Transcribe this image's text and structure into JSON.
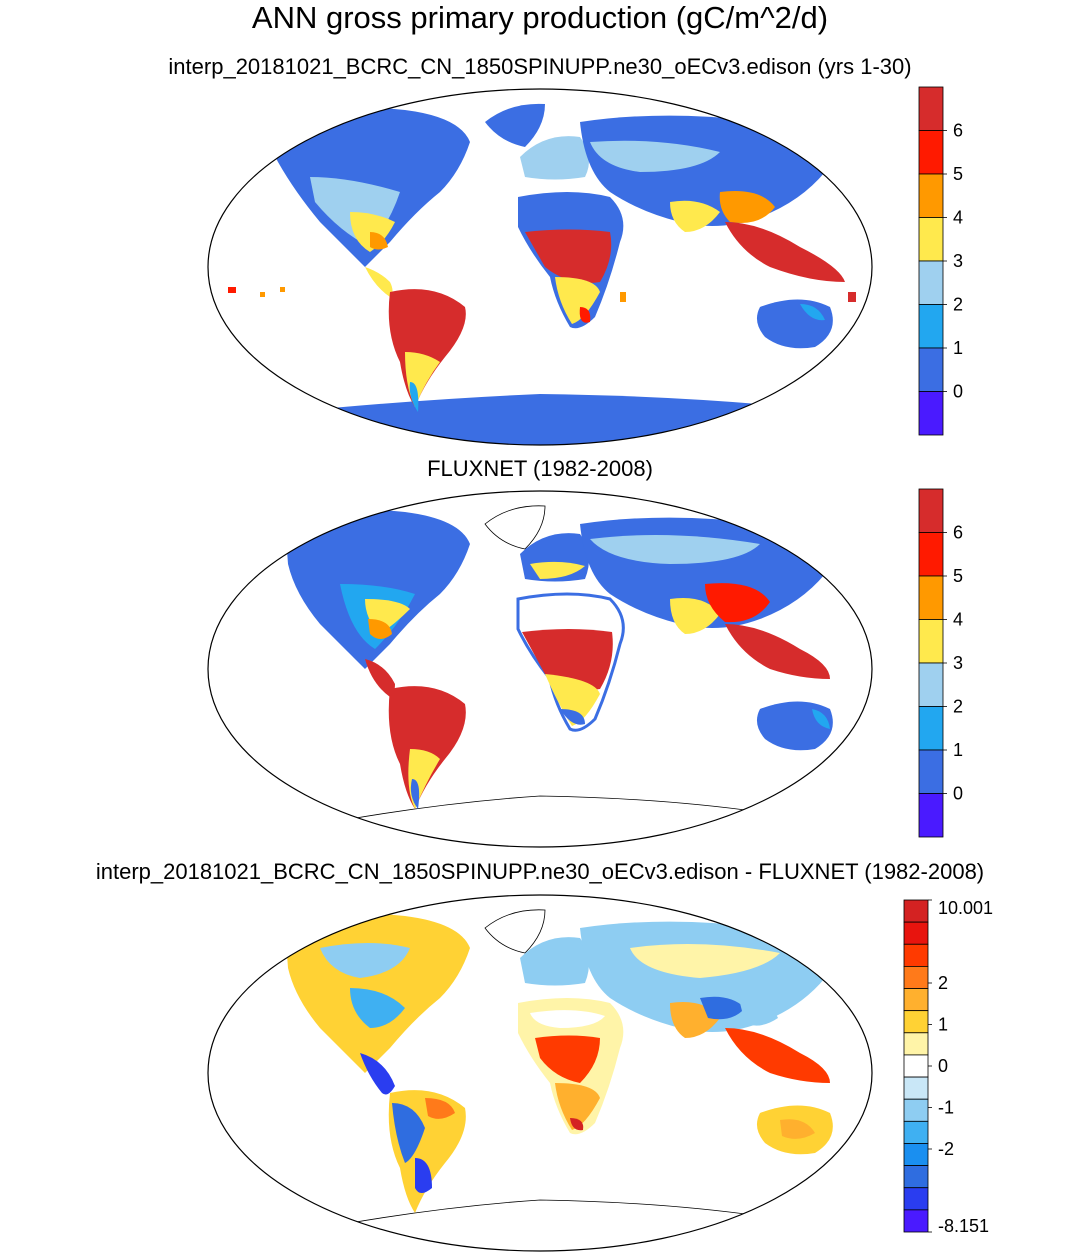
{
  "title": "ANN gross primary production (gC/m^2/d)",
  "panels": [
    {
      "subtitle": "interp_20181021_BCRC_CN_1850SPINUPP.ne30_oECv3.edison (yrs 1-30)",
      "colorbar": {
        "labels": [
          "6",
          "5",
          "4",
          "3",
          "2",
          "1",
          "0"
        ],
        "colors": [
          "#d62c2c",
          "#ff1a00",
          "#ff9900",
          "#ffe94d",
          "#9fd0ef",
          "#22a7f0",
          "#3b6ee3",
          "#4a1aff"
        ]
      }
    },
    {
      "subtitle": "FLUXNET (1982-2008)",
      "colorbar": {
        "labels": [
          "6",
          "5",
          "4",
          "3",
          "2",
          "1",
          "0"
        ],
        "colors": [
          "#d62c2c",
          "#ff1a00",
          "#ff9900",
          "#ffe94d",
          "#9fd0ef",
          "#22a7f0",
          "#3b6ee3",
          "#4a1aff"
        ]
      }
    },
    {
      "subtitle": "interp_20181021_BCRC_CN_1850SPINUPP.ne30_oECv3.edison - FLUXNET (1982-2008)",
      "colorbar": {
        "labels": [
          "10.001",
          "2",
          "1",
          "0",
          "-1",
          "-2",
          "-8.151"
        ],
        "colors": [
          "#d42222",
          "#e8140e",
          "#ff3a00",
          "#ff7a1a",
          "#ffb02e",
          "#ffd234",
          "#fff4a8",
          "#ffffff",
          "#c9e7f7",
          "#8ecdf2",
          "#3fb0f2",
          "#1a8ff0",
          "#2f6de0",
          "#2a3df0",
          "#4a1aff"
        ]
      }
    }
  ]
}
